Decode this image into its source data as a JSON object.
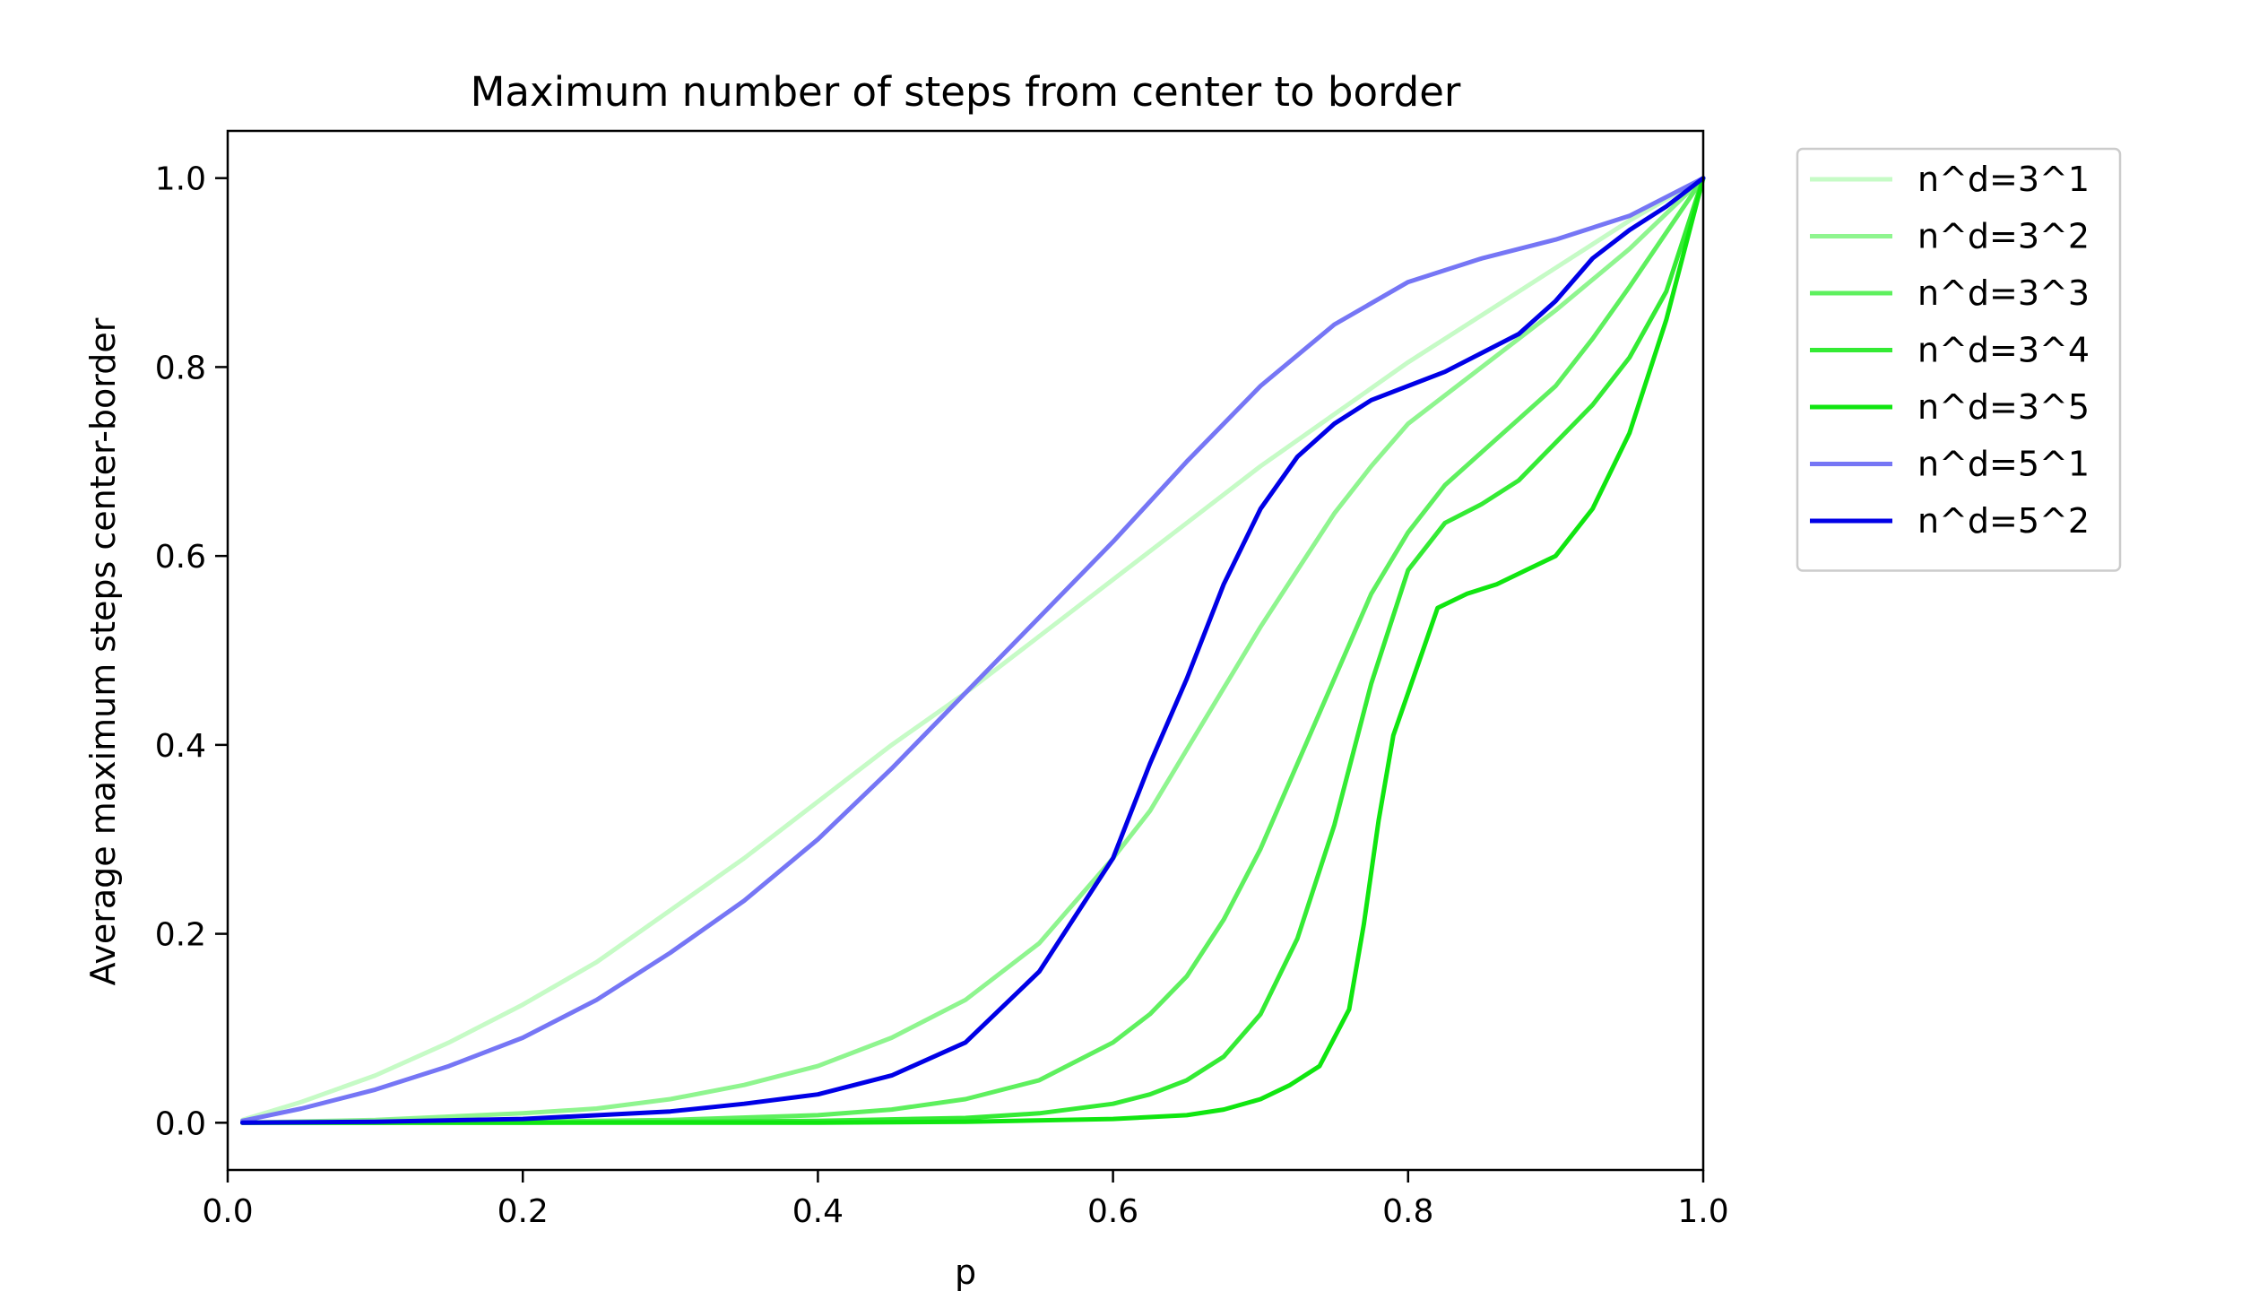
{
  "chart_data": {
    "type": "line",
    "title": "Maximum number of steps from center to border",
    "xlabel": "p",
    "ylabel": "Average maximum steps center-border",
    "xlim": [
      0.0,
      1.0
    ],
    "ylim": [
      -0.05,
      1.05
    ],
    "xticks": [
      0.0,
      0.2,
      0.4,
      0.6,
      0.8,
      1.0
    ],
    "xtick_labels": [
      "0.0",
      "0.2",
      "0.4",
      "0.6",
      "0.8",
      "1.0"
    ],
    "yticks": [
      0.0,
      0.2,
      0.4,
      0.6,
      0.8,
      1.0
    ],
    "ytick_labels": [
      "0.0",
      "0.2",
      "0.4",
      "0.6",
      "0.8",
      "1.0"
    ],
    "grid": false,
    "legend_position": "outside-upper-right",
    "series": [
      {
        "name": "n^d=3^1",
        "color": "#c6fbc6",
        "x": [
          0.01,
          0.05,
          0.1,
          0.15,
          0.2,
          0.25,
          0.3,
          0.35,
          0.4,
          0.45,
          0.5,
          0.55,
          0.6,
          0.65,
          0.7,
          0.75,
          0.8,
          0.85,
          0.9,
          0.95,
          1.0
        ],
        "y": [
          0.003,
          0.022,
          0.05,
          0.085,
          0.125,
          0.17,
          0.225,
          0.28,
          0.34,
          0.4,
          0.455,
          0.515,
          0.575,
          0.635,
          0.695,
          0.75,
          0.805,
          0.855,
          0.905,
          0.955,
          1.0
        ]
      },
      {
        "name": "n^d=3^2",
        "color": "#8ff58f",
        "x": [
          0.01,
          0.1,
          0.2,
          0.25,
          0.3,
          0.35,
          0.4,
          0.45,
          0.5,
          0.55,
          0.6,
          0.625,
          0.65,
          0.675,
          0.7,
          0.725,
          0.75,
          0.775,
          0.8,
          0.85,
          0.9,
          0.95,
          1.0
        ],
        "y": [
          0.0,
          0.003,
          0.01,
          0.015,
          0.025,
          0.04,
          0.06,
          0.09,
          0.13,
          0.19,
          0.28,
          0.33,
          0.395,
          0.46,
          0.525,
          0.585,
          0.645,
          0.695,
          0.74,
          0.8,
          0.86,
          0.925,
          1.0
        ]
      },
      {
        "name": "n^d=3^3",
        "color": "#5ef05e",
        "x": [
          0.01,
          0.1,
          0.2,
          0.3,
          0.4,
          0.45,
          0.5,
          0.55,
          0.6,
          0.625,
          0.65,
          0.675,
          0.7,
          0.725,
          0.75,
          0.775,
          0.8,
          0.825,
          0.85,
          0.875,
          0.9,
          0.925,
          0.95,
          1.0
        ],
        "y": [
          0.0,
          0.0,
          0.001,
          0.003,
          0.008,
          0.014,
          0.025,
          0.045,
          0.085,
          0.115,
          0.155,
          0.215,
          0.29,
          0.38,
          0.47,
          0.56,
          0.625,
          0.675,
          0.71,
          0.745,
          0.78,
          0.83,
          0.885,
          1.0
        ]
      },
      {
        "name": "n^d=3^4",
        "color": "#34eb34",
        "x": [
          0.01,
          0.2,
          0.3,
          0.4,
          0.5,
          0.55,
          0.6,
          0.625,
          0.65,
          0.675,
          0.7,
          0.725,
          0.75,
          0.775,
          0.8,
          0.825,
          0.85,
          0.875,
          0.9,
          0.925,
          0.95,
          0.975,
          1.0
        ],
        "y": [
          0.0,
          0.0,
          0.001,
          0.002,
          0.005,
          0.01,
          0.02,
          0.03,
          0.045,
          0.07,
          0.115,
          0.195,
          0.315,
          0.465,
          0.585,
          0.635,
          0.655,
          0.68,
          0.72,
          0.76,
          0.81,
          0.88,
          1.0
        ]
      },
      {
        "name": "n^d=3^5",
        "color": "#10e610",
        "x": [
          0.01,
          0.3,
          0.4,
          0.5,
          0.6,
          0.65,
          0.675,
          0.7,
          0.72,
          0.74,
          0.76,
          0.77,
          0.78,
          0.79,
          0.8,
          0.81,
          0.82,
          0.84,
          0.86,
          0.88,
          0.9,
          0.925,
          0.95,
          0.975,
          1.0
        ],
        "y": [
          0.0,
          0.0,
          0.0,
          0.001,
          0.004,
          0.008,
          0.014,
          0.025,
          0.04,
          0.06,
          0.12,
          0.21,
          0.32,
          0.41,
          0.455,
          0.5,
          0.545,
          0.56,
          0.57,
          0.585,
          0.6,
          0.65,
          0.73,
          0.85,
          1.0
        ]
      },
      {
        "name": "n^d=5^1",
        "color": "#7676f5",
        "x": [
          0.01,
          0.05,
          0.1,
          0.15,
          0.2,
          0.25,
          0.3,
          0.35,
          0.4,
          0.45,
          0.5,
          0.55,
          0.6,
          0.65,
          0.7,
          0.75,
          0.8,
          0.85,
          0.9,
          0.95,
          1.0
        ],
        "y": [
          0.002,
          0.015,
          0.035,
          0.06,
          0.09,
          0.13,
          0.18,
          0.235,
          0.3,
          0.375,
          0.455,
          0.535,
          0.615,
          0.7,
          0.78,
          0.845,
          0.89,
          0.915,
          0.935,
          0.96,
          1.0
        ]
      },
      {
        "name": "n^d=5^2",
        "color": "#0000e6",
        "x": [
          0.01,
          0.1,
          0.2,
          0.3,
          0.35,
          0.4,
          0.45,
          0.5,
          0.55,
          0.575,
          0.6,
          0.625,
          0.65,
          0.675,
          0.7,
          0.725,
          0.75,
          0.775,
          0.8,
          0.825,
          0.85,
          0.875,
          0.9,
          0.925,
          0.95,
          0.975,
          1.0
        ],
        "y": [
          0.0,
          0.001,
          0.004,
          0.012,
          0.02,
          0.03,
          0.05,
          0.085,
          0.16,
          0.22,
          0.28,
          0.38,
          0.47,
          0.57,
          0.65,
          0.705,
          0.74,
          0.765,
          0.78,
          0.795,
          0.815,
          0.835,
          0.87,
          0.915,
          0.945,
          0.97,
          1.0
        ]
      }
    ]
  }
}
